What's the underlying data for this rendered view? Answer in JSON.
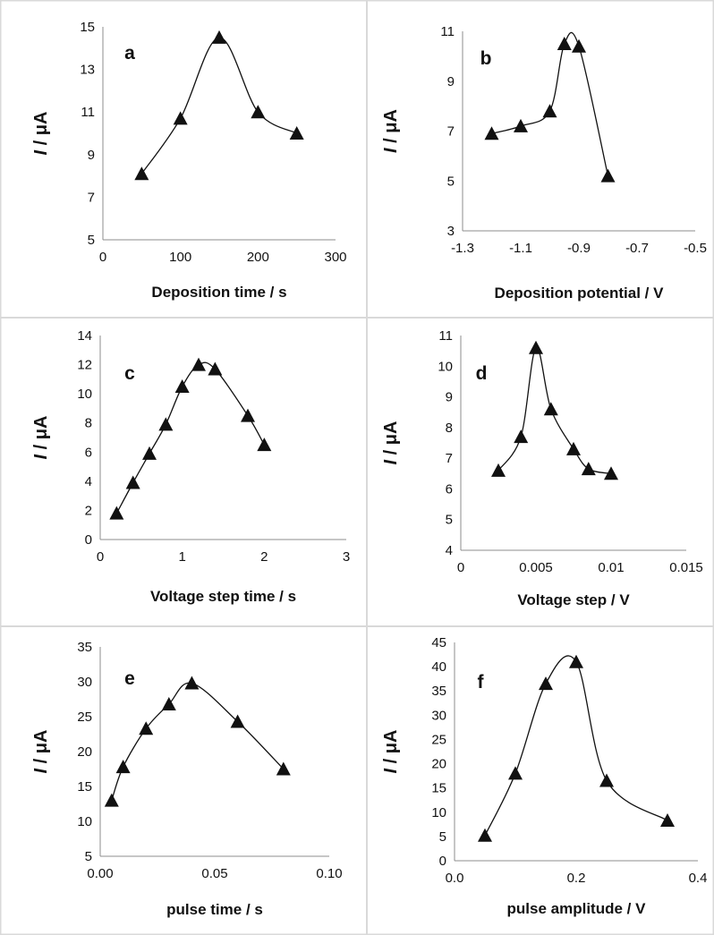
{
  "chart_data": [
    {
      "type": "scatter",
      "panel_label": "a",
      "title": "",
      "xlabel": "Deposition time / s",
      "ylabel_italic": "I",
      "ylabel_rest": " / μA",
      "xlim": [
        0,
        300
      ],
      "ylim": [
        5,
        15
      ],
      "xticks": [
        "0",
        "100",
        "200",
        "300"
      ],
      "xtick_values": [
        0,
        100,
        200,
        300
      ],
      "yticks": [
        "5",
        "7",
        "9",
        "11",
        "13",
        "15"
      ],
      "ytick_values": [
        5,
        7,
        9,
        11,
        13,
        15
      ],
      "grid": false,
      "series": [
        {
          "x": [
            50,
            100,
            150,
            200,
            250
          ],
          "y": [
            8.1,
            10.7,
            14.5,
            11.0,
            10.0
          ]
        }
      ]
    },
    {
      "type": "scatter",
      "panel_label": "b",
      "title": "",
      "xlabel": "Deposition potential / V",
      "ylabel_italic": "I",
      "ylabel_rest": " / μA",
      "xlim": [
        -1.3,
        -0.5
      ],
      "ylim": [
        3,
        11
      ],
      "xticks": [
        "-1.3",
        "-1.1",
        "-0.9",
        "-0.7",
        "-0.5"
      ],
      "xtick_values": [
        -1.3,
        -1.1,
        -0.9,
        -0.7,
        -0.5
      ],
      "yticks": [
        "3",
        "5",
        "7",
        "9",
        "11"
      ],
      "ytick_values": [
        3,
        5,
        7,
        9,
        11
      ],
      "grid": false,
      "series": [
        {
          "x": [
            -1.2,
            -1.1,
            -1.0,
            -0.95,
            -0.9,
            -0.8
          ],
          "y": [
            6.9,
            7.2,
            7.8,
            10.5,
            10.4,
            5.2
          ]
        }
      ]
    },
    {
      "type": "scatter",
      "panel_label": "c",
      "title": "",
      "xlabel": "Voltage step time / s",
      "ylabel_italic": "I",
      "ylabel_rest": " / μA",
      "xlim": [
        0,
        3
      ],
      "ylim": [
        0,
        14
      ],
      "xticks": [
        "0",
        "1",
        "2",
        "3"
      ],
      "xtick_values": [
        0,
        1,
        2,
        3
      ],
      "yticks": [
        "0",
        "2",
        "4",
        "6",
        "8",
        "10",
        "12",
        "14"
      ],
      "ytick_values": [
        0,
        2,
        4,
        6,
        8,
        10,
        12,
        14
      ],
      "grid": false,
      "series": [
        {
          "x": [
            0.2,
            0.4,
            0.6,
            0.8,
            1.0,
            1.2,
            1.4,
            1.8,
            2.0
          ],
          "y": [
            1.8,
            3.9,
            5.9,
            7.9,
            10.5,
            12.0,
            11.7,
            8.5,
            6.5
          ]
        }
      ]
    },
    {
      "type": "scatter",
      "panel_label": "d",
      "title": "",
      "xlabel": "Voltage step / V",
      "ylabel_italic": "I",
      "ylabel_rest": " / μA",
      "xlim": [
        0,
        0.015
      ],
      "ylim": [
        4,
        11
      ],
      "xticks": [
        "0",
        "0.005",
        "0.01",
        "0.015"
      ],
      "xtick_values": [
        0,
        0.005,
        0.01,
        0.015
      ],
      "yticks": [
        "4",
        "5",
        "6",
        "7",
        "8",
        "9",
        "10",
        "11"
      ],
      "ytick_values": [
        4,
        5,
        6,
        7,
        8,
        9,
        10,
        11
      ],
      "grid": false,
      "series": [
        {
          "x": [
            0.0025,
            0.004,
            0.005,
            0.006,
            0.0075,
            0.0085,
            0.01
          ],
          "y": [
            6.6,
            7.7,
            10.6,
            8.6,
            7.3,
            6.65,
            6.5
          ]
        }
      ]
    },
    {
      "type": "scatter",
      "panel_label": "e",
      "title": "",
      "xlabel": "pulse time / s",
      "ylabel_italic": "I",
      "ylabel_rest": " / μA",
      "xlim": [
        0,
        0.1
      ],
      "ylim": [
        5,
        35
      ],
      "xticks": [
        "0.00",
        "0.05",
        "0.10"
      ],
      "xtick_values": [
        0,
        0.05,
        0.1
      ],
      "yticks": [
        "5",
        "10",
        "15",
        "20",
        "25",
        "30",
        "35"
      ],
      "ytick_values": [
        5,
        10,
        15,
        20,
        25,
        30,
        35
      ],
      "grid": false,
      "series": [
        {
          "x": [
            0.005,
            0.01,
            0.02,
            0.03,
            0.04,
            0.06,
            0.08
          ],
          "y": [
            13.0,
            17.8,
            23.3,
            26.8,
            29.8,
            24.3,
            17.5
          ]
        }
      ]
    },
    {
      "type": "scatter",
      "panel_label": "f",
      "title": "",
      "xlabel": "pulse amplitude / V",
      "ylabel_italic": "I",
      "ylabel_rest": " / μA",
      "xlim": [
        0,
        0.4
      ],
      "ylim": [
        0,
        45
      ],
      "xticks": [
        "0.0",
        "0.2",
        "0.4"
      ],
      "xtick_values": [
        0,
        0.2,
        0.4
      ],
      "yticks": [
        "0",
        "5",
        "10",
        "15",
        "20",
        "25",
        "30",
        "35",
        "40",
        "45"
      ],
      "ytick_values": [
        0,
        5,
        10,
        15,
        20,
        25,
        30,
        35,
        40,
        45
      ],
      "grid": false,
      "series": [
        {
          "x": [
            0.05,
            0.1,
            0.15,
            0.2,
            0.25,
            0.35
          ],
          "y": [
            5.2,
            18.0,
            36.5,
            41.0,
            16.5,
            8.3
          ]
        }
      ]
    }
  ],
  "colors": {
    "marker": "#111111",
    "line": "#111111",
    "axis": "#8c8c8c",
    "panel_border": "#d9d9d9"
  }
}
